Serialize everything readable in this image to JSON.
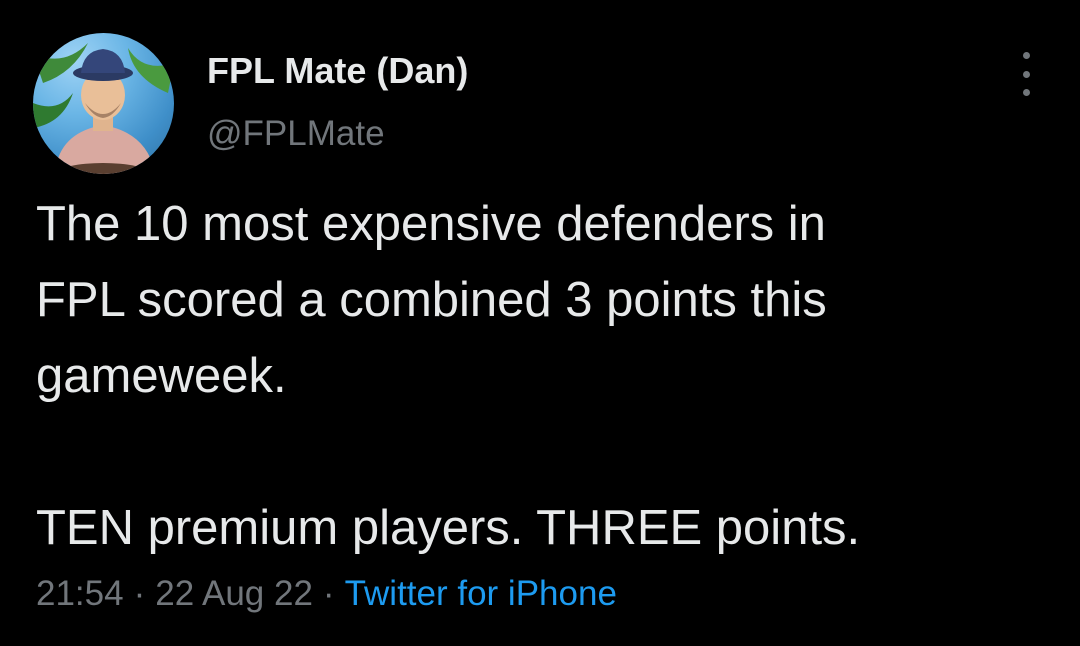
{
  "author": {
    "display_name": "FPL Mate (Dan)",
    "handle": "@FPLMate"
  },
  "tweet": {
    "lines": [
      "The 10 most expensive defenders in",
      "FPL scored a combined 3 points this",
      "gameweek.",
      "TEN premium players. THREE points."
    ]
  },
  "meta": {
    "time": "21:54",
    "date": "22 Aug 22",
    "separator": "·",
    "source": "Twitter for iPhone"
  },
  "icons": {
    "more": "more-vertical-icon",
    "avatar": "profile-photo"
  },
  "colors": {
    "background": "#000000",
    "text_primary": "#e7e9ea",
    "text_secondary": "#71767b",
    "link": "#1d9bf0"
  }
}
